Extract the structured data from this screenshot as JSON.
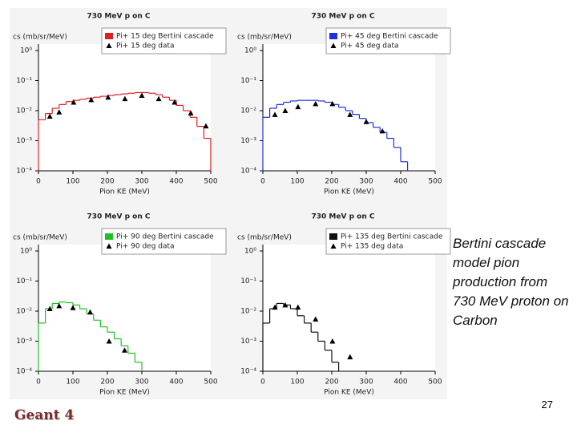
{
  "chart_data": [
    {
      "type": "combo",
      "title": "730 MeV p on C",
      "xlabel": "Pion KE (MeV)",
      "ylabel": "cs (mb/sr/MeV)",
      "log_y": true,
      "grid": false,
      "legend": "upper right",
      "xlim": [
        0,
        500
      ],
      "xticks": [
        0,
        100,
        200,
        300,
        400,
        500
      ],
      "ylim": [
        0.0001,
        1
      ],
      "yticks": [
        {
          "value": 1,
          "label": "10⁰"
        },
        {
          "value": 0.1,
          "label": "10⁻¹"
        },
        {
          "value": 0.01,
          "label": "10⁻²"
        },
        {
          "value": 0.001,
          "label": "10⁻³"
        },
        {
          "value": 0.0001,
          "label": "10⁻⁴"
        }
      ],
      "series": [
        {
          "name": "Pi+ 15 deg Bertini cascade",
          "type": "step",
          "color": "#e02020",
          "bins": [
            0,
            20,
            40,
            60,
            80,
            100,
            120,
            140,
            160,
            180,
            200,
            220,
            240,
            260,
            280,
            300,
            320,
            340,
            360,
            380,
            400,
            420,
            440,
            460,
            480,
            500
          ],
          "values": [
            0.005,
            0.008,
            0.012,
            0.016,
            0.02,
            0.022,
            0.024,
            0.026,
            0.028,
            0.03,
            0.032,
            0.034,
            0.036,
            0.038,
            0.04,
            0.04,
            0.038,
            0.034,
            0.028,
            0.022,
            0.015,
            0.01,
            0.006,
            0.003,
            0.0012
          ]
        },
        {
          "name": "Pi+ 15 deg data",
          "type": "scatter",
          "color": "#000000",
          "x": [
            33,
            60,
            102,
            153,
            202,
            251,
            300,
            349,
            395,
            442,
            486
          ],
          "values": [
            0.0065,
            0.009,
            0.019,
            0.023,
            0.028,
            0.025,
            0.032,
            0.025,
            0.019,
            0.0083,
            0.0031
          ]
        }
      ]
    },
    {
      "type": "combo",
      "title": "730 MeV p on C",
      "xlabel": "Pion KE (MeV)",
      "ylabel": "cs (mb/sr/MeV)",
      "log_y": true,
      "grid": false,
      "legend": "upper right",
      "xlim": [
        0,
        500
      ],
      "xticks": [
        0,
        100,
        200,
        300,
        400,
        500
      ],
      "ylim": [
        0.0001,
        1
      ],
      "yticks": [
        {
          "value": 1,
          "label": "10⁰"
        },
        {
          "value": 0.1,
          "label": "10⁻¹"
        },
        {
          "value": 0.01,
          "label": "10⁻²"
        },
        {
          "value": 0.001,
          "label": "10⁻³"
        },
        {
          "value": 0.0001,
          "label": "10⁻⁴"
        }
      ],
      "series": [
        {
          "name": "Pi+ 45 deg Bertini cascade",
          "type": "step",
          "color": "#2030e0",
          "bins": [
            0,
            20,
            40,
            60,
            80,
            100,
            120,
            140,
            160,
            180,
            200,
            220,
            240,
            260,
            280,
            300,
            320,
            340,
            360,
            380,
            400,
            420
          ],
          "values": [
            0.006,
            0.012,
            0.016,
            0.019,
            0.021,
            0.022,
            0.022,
            0.022,
            0.021,
            0.019,
            0.016,
            0.013,
            0.01,
            0.0075,
            0.0055,
            0.004,
            0.0028,
            0.0019,
            0.0012,
            0.0006,
            0.0002
          ]
        },
        {
          "name": "Pi+ 45 deg data",
          "type": "scatter",
          "color": "#000000",
          "x": [
            35,
            65,
            102,
            153,
            202,
            253,
            300,
            347
          ],
          "values": [
            0.0074,
            0.01,
            0.0135,
            0.017,
            0.017,
            0.0074,
            0.0043,
            0.0021
          ]
        }
      ]
    },
    {
      "type": "combo",
      "title": "730 MeV p on C",
      "xlabel": "Pion KE (MeV)",
      "ylabel": "cs (mb/sr/MeV)",
      "log_y": true,
      "grid": false,
      "legend": "upper right",
      "xlim": [
        0,
        500
      ],
      "xticks": [
        0,
        100,
        200,
        300,
        400,
        500
      ],
      "ylim": [
        0.0001,
        1
      ],
      "yticks": [
        {
          "value": 1,
          "label": "10⁰"
        },
        {
          "value": 0.1,
          "label": "10⁻¹"
        },
        {
          "value": 0.01,
          "label": "10⁻²"
        },
        {
          "value": 0.001,
          "label": "10⁻³"
        },
        {
          "value": 0.0001,
          "label": "10⁻⁴"
        }
      ],
      "series": [
        {
          "name": "Pi+ 90 deg Bertini cascade",
          "type": "step",
          "color": "#20c020",
          "bins": [
            0,
            20,
            40,
            60,
            80,
            100,
            120,
            140,
            160,
            180,
            200,
            220,
            240,
            260,
            280,
            300
          ],
          "values": [
            0.004,
            0.012,
            0.018,
            0.02,
            0.019,
            0.016,
            0.012,
            0.008,
            0.005,
            0.003,
            0.002,
            0.0012,
            0.0007,
            0.0004,
            0.0002
          ]
        },
        {
          "name": "Pi+ 90 deg data",
          "type": "scatter",
          "color": "#000000",
          "x": [
            33,
            60,
            100,
            150,
            205,
            250
          ],
          "values": [
            0.012,
            0.015,
            0.013,
            0.0093,
            0.001,
            0.0005
          ]
        }
      ]
    },
    {
      "type": "combo",
      "title": "730 MeV p on C",
      "xlabel": "Pion KE (MeV)",
      "ylabel": "cs (mb/sr/MeV)",
      "log_y": true,
      "grid": false,
      "legend": "upper right",
      "xlim": [
        0,
        500
      ],
      "xticks": [
        0,
        100,
        200,
        300,
        400,
        500
      ],
      "ylim": [
        0.0001,
        1
      ],
      "yticks": [
        {
          "value": 1,
          "label": "10⁰"
        },
        {
          "value": 0.1,
          "label": "10⁻¹"
        },
        {
          "value": 0.01,
          "label": "10⁻²"
        },
        {
          "value": 0.001,
          "label": "10⁻³"
        },
        {
          "value": 0.0001,
          "label": "10⁻⁴"
        }
      ],
      "series": [
        {
          "name": "Pi+ 135 deg Bertini cascade",
          "type": "step",
          "color": "#111111",
          "bins": [
            0,
            20,
            40,
            60,
            80,
            100,
            120,
            140,
            160,
            180,
            200,
            220
          ],
          "values": [
            0.004,
            0.012,
            0.018,
            0.016,
            0.012,
            0.007,
            0.004,
            0.002,
            0.001,
            0.0005,
            0.0002
          ]
        },
        {
          "name": "Pi+ 135 deg data",
          "type": "scatter",
          "color": "#000000",
          "x": [
            35,
            65,
            102,
            153,
            202,
            253
          ],
          "values": [
            0.0135,
            0.016,
            0.0135,
            0.0054,
            0.001,
            0.0003
          ]
        }
      ]
    }
  ],
  "slide": {
    "caption": "Bertini cascade model pion production from 730 MeV proton on Carbon",
    "page_number": "27",
    "logo": "Geant 4"
  }
}
